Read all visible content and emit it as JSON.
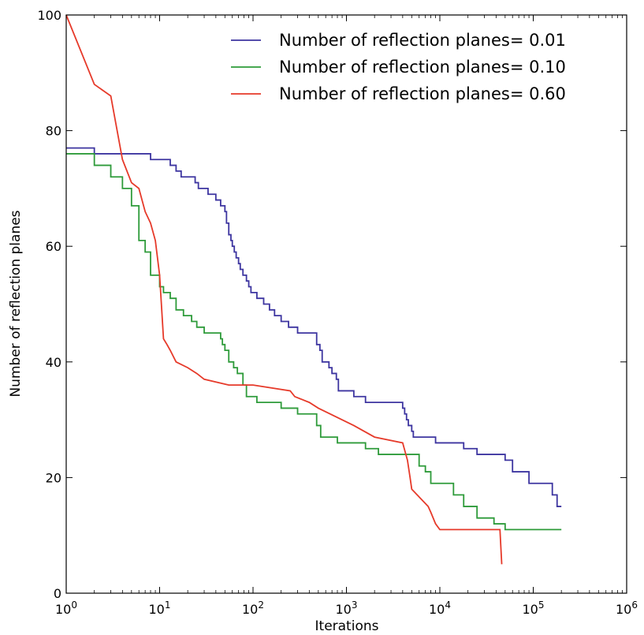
{
  "chart_data": {
    "type": "line",
    "title": "",
    "xlabel": "Iterations",
    "ylabel": "Number of reflection planes",
    "xscale": "log",
    "xlim": [
      1,
      1000000
    ],
    "ylim": [
      0,
      100
    ],
    "grid": false,
    "legend_position": "top-right",
    "x_ticks": [
      {
        "value": 1,
        "base": "10",
        "exp": "0"
      },
      {
        "value": 10,
        "base": "10",
        "exp": "1"
      },
      {
        "value": 100,
        "base": "10",
        "exp": "2"
      },
      {
        "value": 1000,
        "base": "10",
        "exp": "3"
      },
      {
        "value": 10000,
        "base": "10",
        "exp": "4"
      },
      {
        "value": 100000,
        "base": "10",
        "exp": "5"
      },
      {
        "value": 1000000,
        "base": "10",
        "exp": "6"
      }
    ],
    "y_ticks": [
      {
        "value": 0,
        "label": "0"
      },
      {
        "value": 20,
        "label": "20"
      },
      {
        "value": 40,
        "label": "40"
      },
      {
        "value": 60,
        "label": "60"
      },
      {
        "value": 80,
        "label": "80"
      },
      {
        "value": 100,
        "label": "100"
      }
    ],
    "series": [
      {
        "name": "Number of reflection planes= 0.01",
        "color": "#3d35a0",
        "step": true,
        "x": [
          1,
          2,
          3,
          5,
          8,
          9,
          13,
          15,
          17,
          19,
          24,
          26,
          33,
          40,
          45,
          50,
          52,
          55,
          58,
          60,
          63,
          66,
          70,
          73,
          76,
          78,
          80,
          85,
          90,
          95,
          100,
          110,
          130,
          150,
          170,
          200,
          240,
          300,
          320,
          480,
          520,
          550,
          650,
          700,
          780,
          820,
          1200,
          1600,
          4000,
          4200,
          4400,
          4600,
          5000,
          5200,
          7000,
          9000,
          10000,
          18000,
          25000,
          50000,
          60000,
          90000,
          160000,
          180000,
          200000
        ],
        "y": [
          77,
          76,
          76,
          76,
          75,
          75,
          74,
          73,
          72,
          72,
          71,
          70,
          69,
          68,
          67,
          66,
          64,
          62,
          61,
          60,
          59,
          58,
          57,
          56,
          56,
          55,
          55,
          54,
          53,
          52,
          52,
          51,
          50,
          49,
          48,
          47,
          46,
          45,
          45,
          43,
          42,
          40,
          39,
          38,
          37,
          35,
          34,
          33,
          32,
          31,
          30,
          29,
          28,
          27,
          27,
          26,
          26,
          25,
          24,
          23,
          21,
          19,
          17,
          15,
          15
        ]
      },
      {
        "name": "Number of reflection planes= 0.10",
        "color": "#2e9b3a",
        "step": true,
        "x": [
          1,
          2,
          3,
          4,
          5,
          6,
          7,
          8,
          10,
          11,
          13,
          15,
          18,
          22,
          25,
          30,
          45,
          47,
          50,
          55,
          62,
          68,
          78,
          85,
          110,
          200,
          300,
          480,
          530,
          800,
          1000,
          1600,
          2200,
          5000,
          6000,
          7000,
          8000,
          14000,
          18000,
          25000,
          38000,
          50000,
          200000
        ],
        "y": [
          76,
          74,
          72,
          70,
          67,
          61,
          59,
          55,
          53,
          52,
          51,
          49,
          48,
          47,
          46,
          45,
          44,
          43,
          42,
          40,
          39,
          38,
          36,
          34,
          33,
          32,
          31,
          29,
          27,
          26,
          26,
          25,
          24,
          24,
          22,
          21,
          19,
          17,
          15,
          13,
          12,
          11,
          11
        ]
      },
      {
        "name": "Number of reflection planes= 0.60",
        "color": "#e63a2a",
        "step": false,
        "x": [
          1,
          2,
          3,
          4,
          5,
          6,
          7,
          8,
          9,
          10,
          11,
          12,
          13,
          15,
          20,
          25,
          30,
          55,
          100,
          250,
          280,
          400,
          500,
          1200,
          2000,
          4000,
          4500,
          4800,
          5000,
          7500,
          8000,
          9000,
          10000,
          44000,
          46000
        ],
        "y": [
          100,
          88,
          86,
          75,
          71,
          70,
          66,
          64,
          61,
          55,
          44,
          43,
          42,
          40,
          39,
          38,
          37,
          36,
          36,
          35,
          34,
          33,
          32,
          29,
          27,
          26,
          23,
          20,
          18,
          15,
          14,
          12,
          11,
          11,
          5
        ]
      }
    ]
  }
}
